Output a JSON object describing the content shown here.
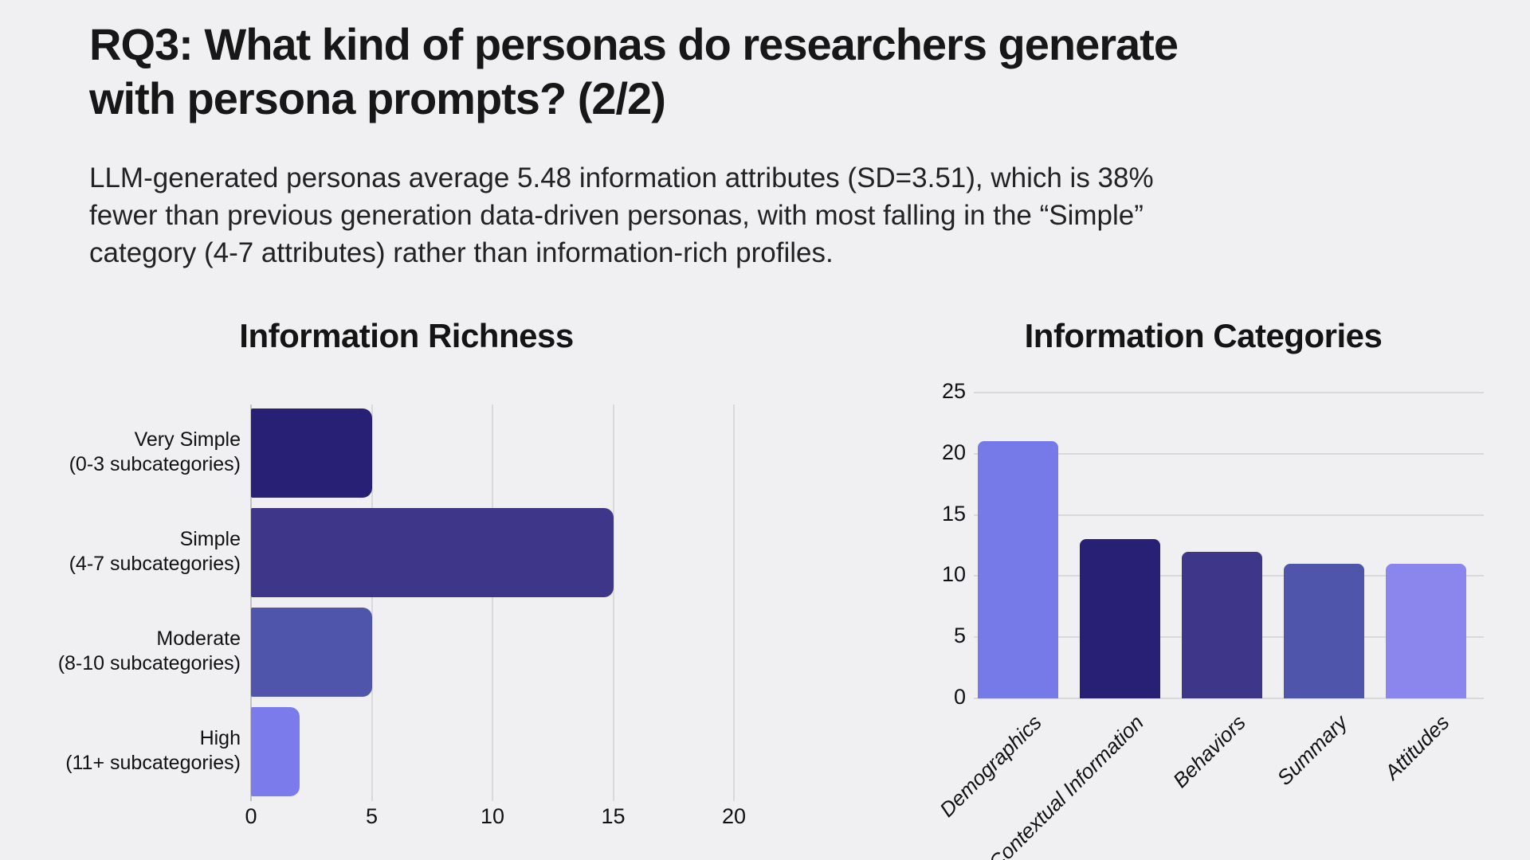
{
  "slide": {
    "title": "RQ3: What kind of personas do researchers generate\nwith persona prompts? (2/2)",
    "subtitle": "LLM-generated personas average 5.48 information attributes (SD=3.51), which is 38%\nfewer than previous generation data-driven personas, with most falling in the “Simple”\ncategory (4-7 attributes) rather than information-rich profiles."
  },
  "colors": {
    "background": "#f0f0f2",
    "text": "#1a1a1a",
    "gridline": "#d9d9da",
    "axis_line": "#c2c2c4",
    "dark_navy": "#272074",
    "indigo": "#3e3689",
    "slate_blue": "#4e55ab",
    "periwinkle": "#767ae9",
    "light_periwinkle": "#8b85ee"
  },
  "chart_data": [
    {
      "type": "bar",
      "orientation": "horizontal",
      "title": "Information Richness",
      "categories": [
        "Very Simple\n(0-3 subcategories)",
        "Simple\n(4-7 subcategories)",
        "Moderate\n(8-10 subcategories)",
        "High\n(11+ subcategories)"
      ],
      "values": [
        5,
        15,
        5,
        2
      ],
      "bar_colors": [
        "#272074",
        "#3e3689",
        "#4e55ab",
        "#7b7bec"
      ],
      "xlabel": "",
      "ylabel": "",
      "xlim": [
        0,
        20
      ],
      "xticks": [
        0,
        5,
        10,
        15,
        20
      ],
      "grid": true,
      "legend": false
    },
    {
      "type": "bar",
      "orientation": "vertical",
      "title": "Information Categories",
      "categories": [
        "Demographics",
        "Contextual Information",
        "Behaviors",
        "Summary",
        "Attitudes"
      ],
      "values": [
        21,
        13,
        12,
        11,
        11
      ],
      "bar_colors": [
        "#767ae9",
        "#272074",
        "#3e3689",
        "#4e55ab",
        "#8b85ee"
      ],
      "xlabel": "",
      "ylabel": "",
      "ylim": [
        0,
        25
      ],
      "yticks": [
        0,
        5,
        10,
        15,
        20,
        25
      ],
      "grid": true,
      "legend": false
    }
  ]
}
